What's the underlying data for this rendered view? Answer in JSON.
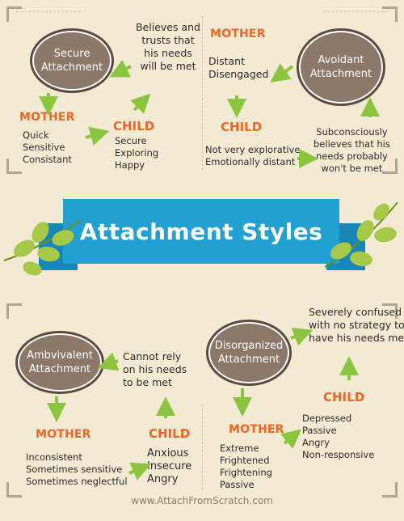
{
  "title": "Attachment Styles",
  "footer": "www.AttachFromScratch.com",
  "colors": {
    "background": "#f3ead3",
    "circle": "#8c7868",
    "accent_orange": "#f26522",
    "banner_blue": "#22a0d2",
    "arrow_green": "#8bc53f"
  },
  "secure": {
    "name": "Secure\nAttachment",
    "belief": "Believes and\ntrusts that\nhis needs\nwill be met",
    "mother_label": "MOTHER",
    "mother_traits": "Quick\nSensitive\nConsistant",
    "child_label": "CHILD",
    "child_traits": "Secure\nExploring\nHappy"
  },
  "avoidant": {
    "name": "Avoidant\nAttachment",
    "mother_label": "MOTHER",
    "mother_traits": "Distant\nDisengaged",
    "child_label": "CHILD",
    "child_traits": "Not very explorative\nEmotionally distant",
    "belief": "Subconsciously\nbelieves that his\nneeds probably\nwon't be met"
  },
  "ambivalent": {
    "name": "Ambvivalent\nAttachment",
    "belief": "Cannot rely\non his needs\nto be met",
    "mother_label": "MOTHER",
    "mother_traits": "Inconsistent\nSometimes sensitive\nSometimes neglectful",
    "child_label": "CHILD",
    "child_traits": "Anxious\nInsecure\nAngry"
  },
  "disorganized": {
    "name": "Disorganized\nAttachment",
    "mother_label": "MOTHER",
    "mother_traits": "Extreme\nFrightened\nFrightening\nPassive",
    "child_label": "CHILD",
    "child_traits": "Depressed\nPassive\nAngry\nNon-responsive",
    "belief": "Severely confused\nwith no strategy to\nhave his needs met"
  }
}
